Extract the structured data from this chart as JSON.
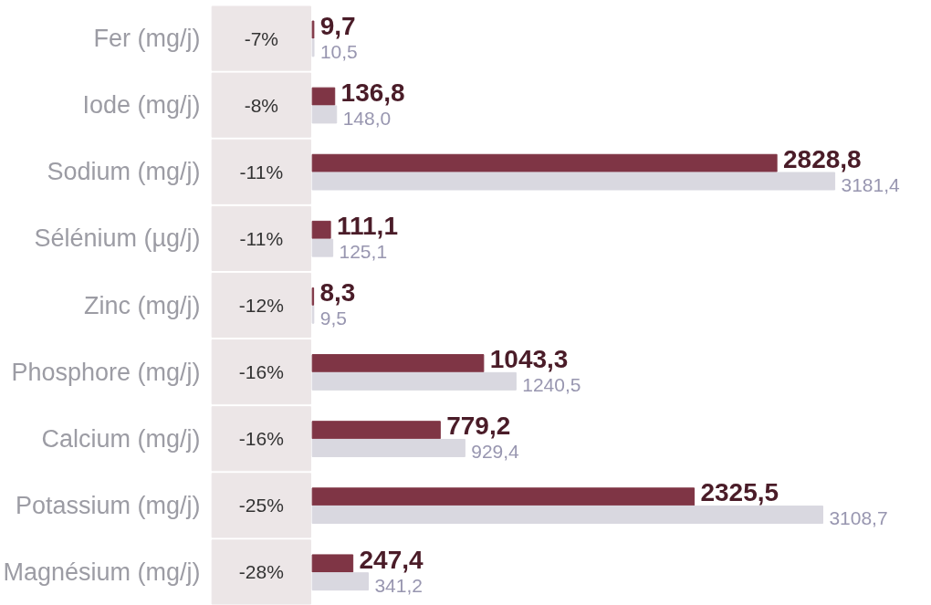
{
  "chart_data": {
    "type": "bar",
    "orientation": "horizontal",
    "categories": [
      "Fer (mg/j)",
      "Iode (mg/j)",
      "Sodium (mg/j)",
      "Sélénium (µg/j)",
      "Zinc (mg/j)",
      "Phosphore (mg/j)",
      "Calcium (mg/j)",
      "Potassium (mg/j)",
      "Magnésium (mg/j)"
    ],
    "series": [
      {
        "color": "#7f3545",
        "values": [
          9.7,
          136.8,
          2828.8,
          111.1,
          8.3,
          1043.3,
          779.2,
          2325.5,
          247.4
        ],
        "value_labels": [
          "9,7",
          "136,8",
          "2828,8",
          "111,1",
          "8,3",
          "1043,3",
          "779,2",
          "2325,5",
          "247,4"
        ]
      },
      {
        "color": "#d9d8e0",
        "values": [
          10.5,
          148.0,
          3181.4,
          125.1,
          9.5,
          1240.5,
          929.4,
          3108.7,
          341.2
        ],
        "value_labels": [
          "10,5",
          "148,0",
          "3181,4",
          "125,1",
          "9,5",
          "1240,5",
          "929,4",
          "3108,7",
          "341,2"
        ]
      }
    ],
    "annotations": [
      "-7%",
      "-8%",
      "-11%",
      "-11%",
      "-12%",
      "-16%",
      "-16%",
      "-25%",
      "-28%"
    ],
    "grid": false,
    "tick_labels": "y"
  }
}
